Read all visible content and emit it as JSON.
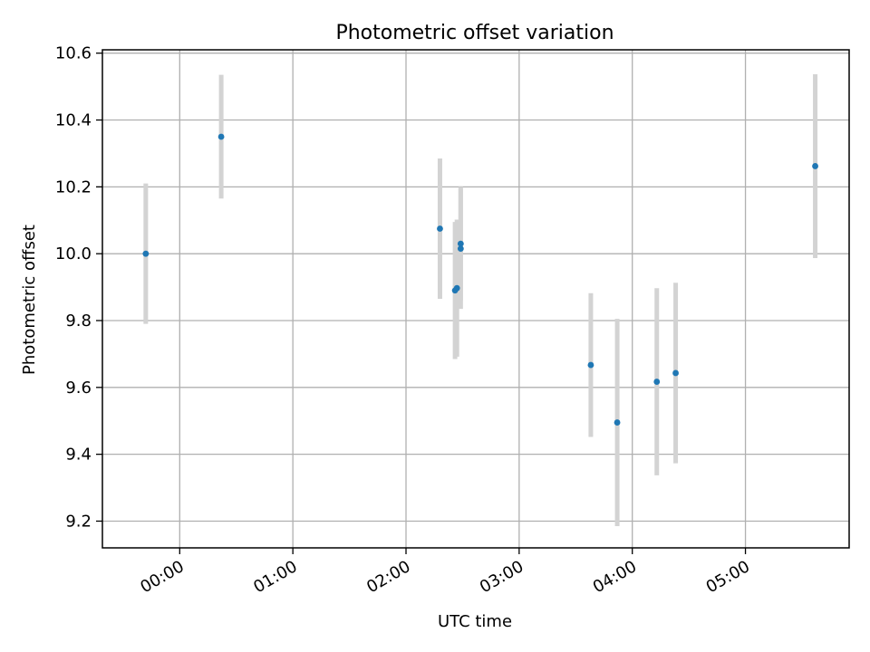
{
  "chart_data": {
    "type": "scatter",
    "title": "Photometric offset variation",
    "xlabel": "UTC time",
    "ylabel": "Photometric offset",
    "x_ticks": [
      "00:00",
      "01:00",
      "02:00",
      "03:00",
      "04:00",
      "05:00"
    ],
    "y_ticks": [
      "9.2",
      "9.4",
      "9.6",
      "9.8",
      "10.0",
      "10.2",
      "10.4",
      "10.6"
    ],
    "xlim": [
      "23:19",
      "05:55"
    ],
    "ylim": [
      9.12,
      10.61
    ],
    "grid": true,
    "series": [
      {
        "marker_color": "#1f77b4",
        "errorbar_color": "#d3d3d3",
        "points": [
          {
            "x": "23:42",
            "y": 10.0,
            "yerr": 0.21
          },
          {
            "x": "00:22",
            "y": 10.35,
            "yerr": 0.185
          },
          {
            "x": "02:18",
            "y": 10.075,
            "yerr": 0.21
          },
          {
            "x": "02:26",
            "y": 9.89,
            "yerr": 0.205
          },
          {
            "x": "02:27",
            "y": 9.897,
            "yerr": 0.205
          },
          {
            "x": "02:29",
            "y": 10.03,
            "yerr": 0.17
          },
          {
            "x": "02:29",
            "y": 10.015,
            "yerr": 0.18
          },
          {
            "x": "03:38",
            "y": 9.667,
            "yerr": 0.215
          },
          {
            "x": "03:52",
            "y": 9.495,
            "yerr": 0.31
          },
          {
            "x": "04:13",
            "y": 9.617,
            "yerr": 0.28
          },
          {
            "x": "04:23",
            "y": 9.643,
            "yerr": 0.27
          },
          {
            "x": "05:37",
            "y": 10.262,
            "yerr": 0.275
          }
        ]
      }
    ]
  }
}
